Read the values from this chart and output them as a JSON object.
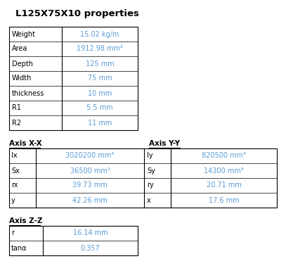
{
  "title": "L125X75X10 properties",
  "title_fontsize": 9.5,
  "label_color": "#000000",
  "value_color": "#5b9bd5",
  "bg_color": "#ffffff",
  "section1_rows": [
    [
      "Weight",
      "15.02 kg/m"
    ],
    [
      "Area",
      "1912.98 mm²"
    ],
    [
      "Depth",
      "125 mm"
    ],
    [
      "Width",
      "75 mm"
    ],
    [
      "thickness",
      "10 mm"
    ],
    [
      "R1",
      "5.5 mm"
    ],
    [
      "R2",
      "11 mm"
    ]
  ],
  "axis_xx_label": "Axis X-X",
  "axis_yy_label": "Axis Y-Y",
  "axis_zz_label": "Axis Z-Z",
  "section2_rows": [
    [
      "Ix",
      "3020200 mm⁴",
      "Iy",
      "820500 mm⁴"
    ],
    [
      "Sx",
      "36500 mm³",
      "Sy",
      "14300 mm³"
    ],
    [
      "rx",
      "39.73 mm",
      "ry",
      "20.71 mm"
    ],
    [
      "y",
      "42.26 mm",
      "x",
      "17.6 mm"
    ]
  ],
  "section3_rows": [
    [
      "r",
      "16.14 mm"
    ],
    [
      "tanα",
      "0.357"
    ]
  ],
  "fig_w": 4.07,
  "fig_h": 3.88,
  "dpi": 100
}
